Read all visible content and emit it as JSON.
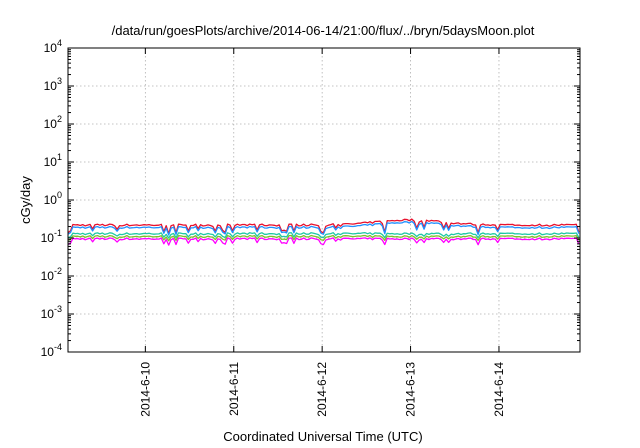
{
  "chart_data": {
    "type": "line",
    "title": "/data/run/goesPlots/archive/2014-06-14/21:00/flux/../bryn/5daysMoon.plot",
    "xlabel": "Coordinated Universal Time (UTC)",
    "ylabel": "cGy/day",
    "yscale": "log",
    "ylim": [
      0.0001,
      10000
    ],
    "y_ticks": [
      {
        "base": "10",
        "exp": "-4",
        "value": 0.0001
      },
      {
        "base": "10",
        "exp": "-3",
        "value": 0.001
      },
      {
        "base": "10",
        "exp": "-2",
        "value": 0.01
      },
      {
        "base": "10",
        "exp": "-1",
        "value": 0.1
      },
      {
        "base": "10",
        "exp": "0",
        "value": 1
      },
      {
        "base": "10",
        "exp": "1",
        "value": 10
      },
      {
        "base": "10",
        "exp": "2",
        "value": 100
      },
      {
        "base": "10",
        "exp": "3",
        "value": 1000
      },
      {
        "base": "10",
        "exp": "4",
        "value": 10000
      }
    ],
    "xlim": [
      "2014-06-09 03:00",
      "2014-06-14 22:00"
    ],
    "x_ticks": [
      {
        "label": "2014-6-10",
        "value": "2014-06-10 00:00"
      },
      {
        "label": "2014-6-11",
        "value": "2014-06-11 00:00"
      },
      {
        "label": "2014-6-12",
        "value": "2014-06-12 00:00"
      },
      {
        "label": "2014-6-13",
        "value": "2014-06-13 00:00"
      },
      {
        "label": "2014-6-14",
        "value": "2014-06-14 00:00"
      }
    ],
    "grid": true,
    "series": [
      {
        "color": "#e8112d",
        "base": 0.22,
        "low": 0.13,
        "bumps": [
          {
            "at": "2014-06-13 00:00",
            "width_h": 12,
            "to": 0.3
          }
        ]
      },
      {
        "color": "#1e90ff",
        "base": 0.19,
        "low": 0.12,
        "bumps": [
          {
            "at": "2014-06-13 00:00",
            "width_h": 12,
            "to": 0.26
          }
        ]
      },
      {
        "color": "#1fc9a4",
        "base": 0.13,
        "low": 0.1,
        "bumps": []
      },
      {
        "color": "#7fbf2a",
        "base": 0.11,
        "low": 0.085,
        "bumps": []
      },
      {
        "color": "#ff00ff",
        "base": 0.095,
        "low": 0.065,
        "bumps": []
      }
    ]
  }
}
